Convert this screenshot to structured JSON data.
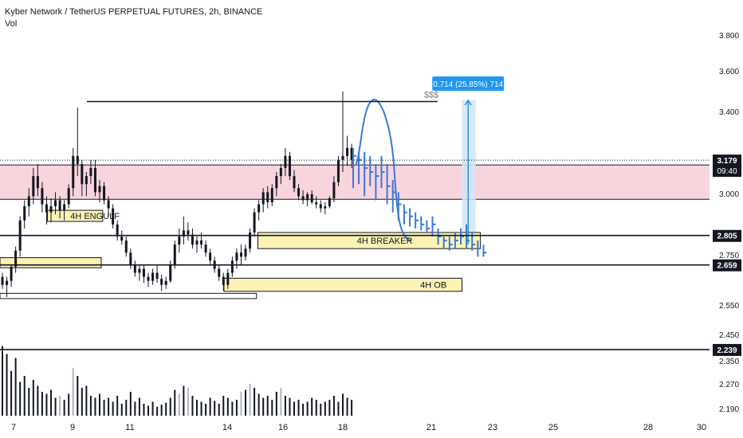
{
  "header": {
    "title": "Kyber Network / TetherUS PERPETUAL FUTURES, 2h, BINANCE",
    "volume_label": "Vol"
  },
  "colors": {
    "candle": "#131722",
    "forecast": "#3d78d8",
    "zone": "#fbf2b4",
    "zone_border": "#131722",
    "resistance_band": "#f8d5dd",
    "measure_fill": "#d3e5f8",
    "measure_label_bg": "#2196f3",
    "volume_dark": "#131722",
    "volume_light": "#b2b5be"
  },
  "chart_data": {
    "type": "candlestick",
    "title": "Kyber Network / TetherUS PERPETUAL FUTURES, 2h, BINANCE",
    "ylim": [
      2.16,
      3.98
    ],
    "y_ticks": [
      "3.800",
      "3.600",
      "3.400",
      "3.000",
      "2.750",
      "2.550",
      "2.450",
      "2.350",
      "2.270",
      "2.190"
    ],
    "x_ticks": [
      "7",
      "9",
      "11",
      "14",
      "16",
      "18",
      "21",
      "23",
      "25",
      "28",
      "30"
    ],
    "price_labels": [
      {
        "value": 3.179,
        "text": "3.179",
        "sub": "09:40",
        "style": "dotted"
      },
      {
        "value": 2.805,
        "text": "2.805",
        "style": "solid"
      },
      {
        "value": 2.659,
        "text": "2.659",
        "style": "solid"
      },
      {
        "value": 2.239,
        "text": "2.239",
        "style": "solid"
      }
    ],
    "resistance_band": {
      "from": 3.155,
      "to": 2.985
    },
    "horizontal_line": {
      "value": 3.47,
      "label": "$$$"
    },
    "zones": [
      {
        "label": "4H ENGULF",
        "top": 2.93,
        "bottom": 2.875
      },
      {
        "label": "4H BREAKER",
        "top": 2.82,
        "bottom": 2.74
      },
      {
        "label": "",
        "top": 2.695,
        "bottom": 2.645
      },
      {
        "label": "4H OB",
        "top": 2.593,
        "bottom": 2.528
      },
      {
        "label": "",
        "top": 2.518,
        "bottom": 2.492
      }
    ],
    "measure": {
      "label": "0.714 (25.85%) 714",
      "from": 2.762,
      "to": 3.476
    },
    "series": [
      {
        "name": "price",
        "points": [
          [
            2.6,
            2.62,
            2.54,
            2.56
          ],
          [
            2.56,
            2.6,
            2.5,
            2.58
          ],
          [
            2.58,
            2.66,
            2.55,
            2.65
          ],
          [
            2.65,
            2.75,
            2.62,
            2.73
          ],
          [
            2.73,
            2.9,
            2.7,
            2.88
          ],
          [
            2.88,
            2.98,
            2.84,
            2.95
          ],
          [
            2.95,
            3.04,
            2.9,
            3.0
          ],
          [
            3.0,
            3.14,
            2.96,
            3.1
          ],
          [
            3.1,
            3.16,
            3.0,
            3.04
          ],
          [
            3.04,
            3.07,
            2.92,
            2.96
          ],
          [
            2.96,
            3.0,
            2.86,
            2.92
          ],
          [
            2.92,
            2.99,
            2.87,
            2.95
          ],
          [
            2.95,
            3.02,
            2.91,
            2.98
          ],
          [
            2.98,
            3.0,
            2.89,
            2.93
          ],
          [
            2.93,
            2.98,
            2.88,
            2.96
          ],
          [
            2.96,
            3.06,
            2.94,
            3.04
          ],
          [
            3.04,
            3.24,
            3.0,
            3.2
          ],
          [
            3.2,
            3.44,
            3.1,
            3.16
          ],
          [
            3.16,
            3.18,
            3.0,
            3.06
          ],
          [
            3.06,
            3.12,
            3.0,
            3.1
          ],
          [
            3.1,
            3.18,
            3.06,
            3.14
          ],
          [
            3.14,
            3.18,
            3.0,
            3.02
          ],
          [
            3.02,
            3.08,
            2.97,
            3.05
          ],
          [
            3.05,
            3.07,
            2.96,
            2.98
          ],
          [
            2.98,
            3.0,
            2.9,
            2.94
          ],
          [
            2.94,
            2.96,
            2.84,
            2.86
          ],
          [
            2.86,
            2.88,
            2.78,
            2.8
          ],
          [
            2.8,
            2.83,
            2.76,
            2.78
          ],
          [
            2.78,
            2.8,
            2.7,
            2.72
          ],
          [
            2.72,
            2.74,
            2.64,
            2.66
          ],
          [
            2.66,
            2.68,
            2.6,
            2.62
          ],
          [
            2.62,
            2.66,
            2.58,
            2.64
          ],
          [
            2.64,
            2.66,
            2.57,
            2.6
          ],
          [
            2.6,
            2.62,
            2.55,
            2.58
          ],
          [
            2.58,
            2.64,
            2.56,
            2.62
          ],
          [
            2.62,
            2.66,
            2.57,
            2.59
          ],
          [
            2.59,
            2.61,
            2.53,
            2.56
          ],
          [
            2.56,
            2.6,
            2.54,
            2.58
          ],
          [
            2.58,
            2.68,
            2.57,
            2.66
          ],
          [
            2.66,
            2.78,
            2.64,
            2.76
          ],
          [
            2.76,
            2.84,
            2.72,
            2.8
          ],
          [
            2.8,
            2.9,
            2.76,
            2.83
          ],
          [
            2.83,
            2.87,
            2.78,
            2.81
          ],
          [
            2.81,
            2.84,
            2.74,
            2.76
          ],
          [
            2.76,
            2.8,
            2.72,
            2.78
          ],
          [
            2.78,
            2.82,
            2.74,
            2.76
          ],
          [
            2.76,
            2.78,
            2.7,
            2.72
          ],
          [
            2.72,
            2.74,
            2.66,
            2.68
          ],
          [
            2.68,
            2.7,
            2.62,
            2.64
          ],
          [
            2.64,
            2.66,
            2.58,
            2.6
          ],
          [
            2.6,
            2.62,
            2.53,
            2.56
          ],
          [
            2.56,
            2.64,
            2.54,
            2.62
          ],
          [
            2.62,
            2.7,
            2.6,
            2.68
          ],
          [
            2.68,
            2.74,
            2.64,
            2.72
          ],
          [
            2.72,
            2.76,
            2.66,
            2.7
          ],
          [
            2.7,
            2.76,
            2.68,
            2.74
          ],
          [
            2.74,
            2.84,
            2.72,
            2.82
          ],
          [
            2.82,
            2.94,
            2.8,
            2.92
          ],
          [
            2.92,
            2.98,
            2.88,
            2.96
          ],
          [
            2.96,
            3.04,
            2.92,
            3.02
          ],
          [
            3.02,
            3.05,
            2.94,
            2.97
          ],
          [
            2.97,
            3.06,
            2.95,
            3.04
          ],
          [
            3.04,
            3.12,
            3.0,
            3.1
          ],
          [
            3.1,
            3.16,
            3.06,
            3.14
          ],
          [
            3.14,
            3.24,
            3.1,
            3.2
          ],
          [
            3.2,
            3.22,
            3.08,
            3.1
          ],
          [
            3.1,
            3.13,
            3.02,
            3.04
          ],
          [
            3.04,
            3.06,
            2.98,
            3.0
          ],
          [
            3.0,
            3.03,
            2.96,
            2.98
          ],
          [
            2.98,
            3.02,
            2.95,
            3.01
          ],
          [
            3.01,
            3.03,
            2.96,
            2.97
          ],
          [
            2.97,
            3.0,
            2.94,
            2.96
          ],
          [
            2.96,
            2.98,
            2.92,
            2.94
          ],
          [
            2.94,
            2.97,
            2.91,
            2.95
          ],
          [
            2.95,
            3.0,
            2.94,
            2.99
          ],
          [
            2.99,
            3.1,
            2.97,
            3.07
          ],
          [
            3.07,
            3.2,
            3.05,
            3.18
          ],
          [
            3.18,
            3.52,
            3.12,
            3.2
          ],
          [
            3.2,
            3.3,
            3.15,
            3.24
          ],
          [
            3.24,
            3.26,
            3.14,
            3.18
          ]
        ]
      },
      {
        "name": "forecast",
        "points": [
          [
            3.2,
            3.24,
            3.04
          ],
          [
            3.18,
            3.22,
            3.06
          ],
          [
            3.14,
            3.22,
            3.0
          ],
          [
            3.12,
            3.2,
            3.05
          ],
          [
            3.1,
            3.16,
            2.98
          ],
          [
            3.12,
            3.2,
            3.04
          ],
          [
            3.05,
            3.16,
            2.96
          ],
          [
            3.02,
            3.08,
            2.92
          ],
          [
            2.96,
            3.02,
            2.88
          ],
          [
            2.92,
            2.96,
            2.86
          ],
          [
            2.9,
            2.94,
            2.85
          ],
          [
            2.88,
            2.92,
            2.84
          ],
          [
            2.86,
            2.9,
            2.83
          ],
          [
            2.84,
            2.88,
            2.82
          ],
          [
            2.86,
            2.9,
            2.8
          ],
          [
            2.8,
            2.84,
            2.76
          ],
          [
            2.78,
            2.8,
            2.74
          ],
          [
            2.76,
            2.8,
            2.73
          ],
          [
            2.78,
            2.82,
            2.74
          ],
          [
            2.8,
            2.84,
            2.76
          ],
          [
            2.78,
            2.86,
            2.74
          ],
          [
            2.76,
            2.82,
            2.73
          ],
          [
            2.74,
            2.78,
            2.7
          ],
          [
            2.72,
            2.76,
            2.7
          ]
        ]
      },
      {
        "name": "volume",
        "points": [
          [
            70,
            0
          ],
          [
            62,
            0
          ],
          [
            45,
            0
          ],
          [
            58,
            0
          ],
          [
            34,
            0
          ],
          [
            40,
            0
          ],
          [
            28,
            0
          ],
          [
            36,
            0
          ],
          [
            30,
            0
          ],
          [
            24,
            0
          ],
          [
            22,
            0
          ],
          [
            26,
            0
          ],
          [
            18,
            0
          ],
          [
            20,
            1
          ],
          [
            16,
            0
          ],
          [
            22,
            0
          ],
          [
            48,
            1
          ],
          [
            40,
            0
          ],
          [
            28,
            0
          ],
          [
            30,
            0
          ],
          [
            20,
            0
          ],
          [
            18,
            0
          ],
          [
            22,
            0
          ],
          [
            16,
            0
          ],
          [
            18,
            0
          ],
          [
            14,
            0
          ],
          [
            20,
            0
          ],
          [
            12,
            0
          ],
          [
            16,
            0
          ],
          [
            24,
            0
          ],
          [
            14,
            0
          ],
          [
            18,
            0
          ],
          [
            12,
            0
          ],
          [
            10,
            0
          ],
          [
            14,
            0
          ],
          [
            9,
            0
          ],
          [
            11,
            0
          ],
          [
            13,
            0
          ],
          [
            18,
            0
          ],
          [
            26,
            0
          ],
          [
            22,
            1
          ],
          [
            30,
            0
          ],
          [
            28,
            1
          ],
          [
            20,
            0
          ],
          [
            16,
            0
          ],
          [
            14,
            0
          ],
          [
            12,
            0
          ],
          [
            18,
            0
          ],
          [
            15,
            0
          ],
          [
            12,
            0
          ],
          [
            20,
            0
          ],
          [
            18,
            0
          ],
          [
            14,
            0
          ],
          [
            16,
            0
          ],
          [
            24,
            1
          ],
          [
            26,
            0
          ],
          [
            32,
            1
          ],
          [
            28,
            0
          ],
          [
            22,
            0
          ],
          [
            18,
            0
          ],
          [
            20,
            0
          ],
          [
            16,
            0
          ],
          [
            24,
            0
          ],
          [
            28,
            1
          ],
          [
            20,
            0
          ],
          [
            18,
            0
          ],
          [
            14,
            0
          ],
          [
            16,
            0
          ],
          [
            12,
            0
          ],
          [
            14,
            0
          ],
          [
            18,
            0
          ],
          [
            16,
            0
          ],
          [
            12,
            0
          ],
          [
            14,
            0
          ],
          [
            16,
            0
          ],
          [
            20,
            0
          ],
          [
            14,
            0
          ],
          [
            22,
            0
          ],
          [
            18,
            0
          ],
          [
            16,
            0
          ]
        ]
      }
    ]
  }
}
